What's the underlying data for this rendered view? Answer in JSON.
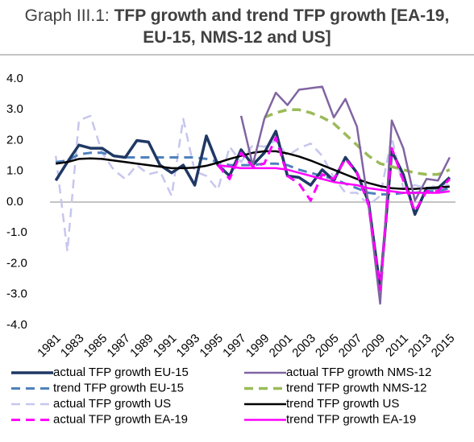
{
  "chart_data": {
    "type": "line",
    "title_prefix": "Graph III.1:",
    "title": "TFP growth and trend TFP growth [EA-19, EU-15, NMS-12 and US]",
    "categories": [
      "1981",
      null,
      "1983",
      null,
      "1985",
      null,
      "1987",
      null,
      "1989",
      null,
      "1991",
      null,
      "1993",
      null,
      "1995",
      null,
      "1997",
      null,
      "1999",
      null,
      "2001",
      null,
      "2003",
      null,
      "2005",
      null,
      "2007",
      null,
      "2009",
      null,
      "2011",
      null,
      "2013",
      null,
      "2015"
    ],
    "ylim": [
      -4,
      4
    ],
    "yticks": [
      {
        "value": -4,
        "label": "-4.0"
      },
      {
        "value": -3,
        "label": "-3.0"
      },
      {
        "value": -2,
        "label": "-2.0"
      },
      {
        "value": -1,
        "label": "-1.0"
      },
      {
        "value": 0,
        "label": "0.0"
      },
      {
        "value": 1,
        "label": "1.0"
      },
      {
        "value": 2,
        "label": "2.0"
      },
      {
        "value": 3,
        "label": "3.0"
      },
      {
        "value": 4,
        "label": "4.0"
      }
    ],
    "series": [
      {
        "name": "actual TFP growth EU-15",
        "color": "#1f3864",
        "dash": false,
        "width": 3.5,
        "values": [
          0.7,
          1.3,
          1.85,
          1.75,
          1.75,
          1.5,
          1.45,
          2.0,
          1.95,
          1.2,
          0.95,
          1.2,
          0.55,
          2.15,
          1.2,
          0.85,
          1.7,
          1.2,
          1.6,
          2.3,
          0.85,
          0.8,
          0.55,
          1.05,
          0.7,
          1.45,
          0.95,
          0.0,
          -2.8,
          1.65,
          0.9,
          -0.4,
          0.45,
          0.45,
          0.8
        ]
      },
      {
        "name": "actual TFP growth NMS-12",
        "color": "#8064a2",
        "dash": false,
        "width": 2.5,
        "values": [
          null,
          null,
          null,
          null,
          null,
          null,
          null,
          null,
          null,
          null,
          null,
          null,
          null,
          null,
          null,
          null,
          2.8,
          1.2,
          2.7,
          3.55,
          3.15,
          3.65,
          3.7,
          3.75,
          2.75,
          3.35,
          2.45,
          -0.1,
          -3.3,
          2.65,
          1.75,
          0.05,
          0.75,
          0.7,
          1.45
        ]
      },
      {
        "name": "trend TFP growth EU-15",
        "color": "#4f81bd",
        "dash": true,
        "width": 3,
        "values": [
          1.3,
          1.35,
          1.55,
          1.6,
          1.6,
          1.5,
          1.45,
          1.45,
          1.45,
          1.45,
          1.45,
          1.45,
          1.45,
          1.4,
          1.3,
          1.2,
          1.2,
          1.2,
          1.25,
          1.25,
          1.2,
          1.05,
          0.95,
          0.85,
          0.75,
          0.6,
          0.45,
          0.3,
          0.25,
          0.25,
          0.3,
          0.3,
          0.35,
          0.35,
          0.45
        ]
      },
      {
        "name": "trend TFP growth NMS-12",
        "color": "#9bbb59",
        "dash": true,
        "width": 3.5,
        "values": [
          null,
          null,
          null,
          null,
          null,
          null,
          null,
          null,
          null,
          null,
          null,
          null,
          null,
          null,
          null,
          null,
          null,
          null,
          2.75,
          2.9,
          3.0,
          3.0,
          2.9,
          2.75,
          2.55,
          2.2,
          1.85,
          1.5,
          1.25,
          1.15,
          1.05,
          0.95,
          0.9,
          0.9,
          1.05
        ]
      },
      {
        "name": "actual TFP growth US",
        "color": "#c6c6ee",
        "dash": true,
        "width": 2.5,
        "values": [
          1.5,
          -1.6,
          2.65,
          2.8,
          1.6,
          1.05,
          0.75,
          1.2,
          0.9,
          1.0,
          0.2,
          2.7,
          1.0,
          0.85,
          0.4,
          1.8,
          1.3,
          1.85,
          1.8,
          2.0,
          1.5,
          1.75,
          1.9,
          1.5,
          0.8,
          0.3,
          0.3,
          -0.1,
          0.2,
          2.1,
          0.45,
          0.55,
          0.45,
          0.55,
          0.55
        ]
      },
      {
        "name": "trend TFP growth US",
        "color": "#000000",
        "dash": false,
        "width": 2.5,
        "values": [
          1.25,
          1.3,
          1.4,
          1.42,
          1.4,
          1.35,
          1.3,
          1.25,
          1.2,
          1.15,
          1.1,
          1.1,
          1.12,
          1.18,
          1.28,
          1.4,
          1.5,
          1.6,
          1.65,
          1.65,
          1.58,
          1.48,
          1.35,
          1.2,
          1.05,
          0.9,
          0.75,
          0.62,
          0.52,
          0.45,
          0.43,
          0.43,
          0.45,
          0.48,
          0.5
        ]
      },
      {
        "name": "actual TFP growth EA-19",
        "color": "#ff00ff",
        "dash": true,
        "width": 3,
        "values": [
          null,
          null,
          null,
          null,
          null,
          null,
          null,
          null,
          null,
          null,
          null,
          null,
          null,
          null,
          1.2,
          0.75,
          1.6,
          1.15,
          1.25,
          2.1,
          0.85,
          0.6,
          0.05,
          0.9,
          0.75,
          1.4,
          0.95,
          -0.1,
          -2.85,
          1.75,
          0.7,
          -0.3,
          0.35,
          0.35,
          0.75
        ]
      },
      {
        "name": "trend TFP growth EA-19",
        "color": "#ff00ff",
        "dash": false,
        "width": 2.5,
        "values": [
          null,
          null,
          null,
          null,
          null,
          null,
          null,
          null,
          null,
          null,
          null,
          null,
          null,
          null,
          1.2,
          1.15,
          1.1,
          1.1,
          1.1,
          1.1,
          1.05,
          0.95,
          0.85,
          0.75,
          0.65,
          0.6,
          0.55,
          0.45,
          0.4,
          0.35,
          0.3,
          0.3,
          0.3,
          0.3,
          0.35
        ]
      }
    ]
  }
}
